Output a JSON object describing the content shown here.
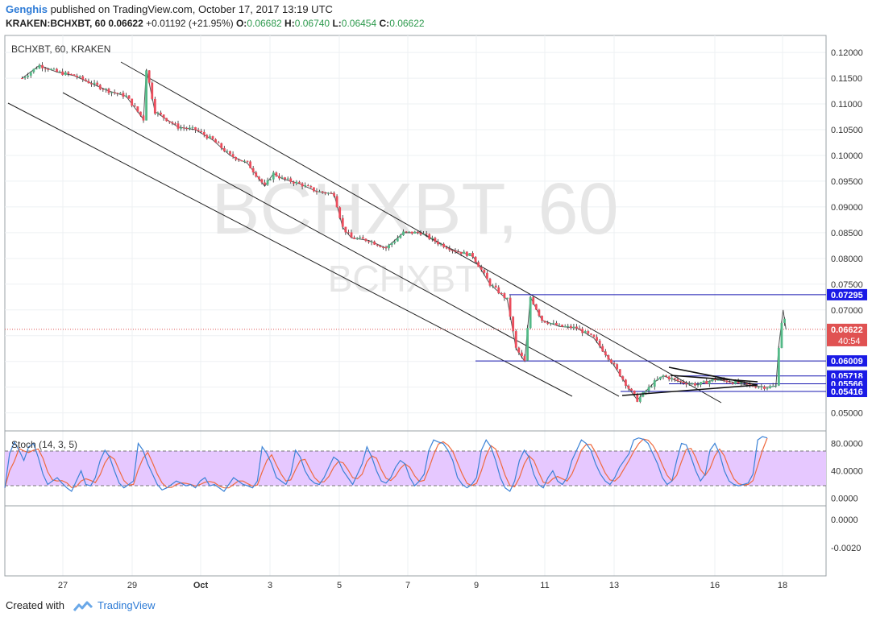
{
  "header": {
    "author": "Genghis",
    "published_text": "published on TradingView.com, October 17, 2017 13:19 UTC",
    "symbol_full": "KRAKEN:BCHXBT, 60",
    "last_price": "0.06622",
    "change": "+0.01192 (+21.95%)",
    "o_label": "O:",
    "o_value": "0.06682",
    "h_label": "H:",
    "h_value": "0.06740",
    "l_label": "L:",
    "l_value": "0.06454",
    "c_label": "C:",
    "c_value": "0.06622"
  },
  "legend_label": "BCHXBT, 60, KRAKEN",
  "watermark": {
    "main": "BCHXBT, 60",
    "sub": "BCHXBT"
  },
  "footer": {
    "created_with": "Created with",
    "brand": "TradingView"
  },
  "colors": {
    "up": "#53b987",
    "down": "#eb4d5c",
    "wick": "#2b2b2b",
    "hline": "#1717b0",
    "label_bg": "#1a1ae6",
    "price_label": "#e05252",
    "stoch_k": "#3b82d6",
    "stoch_d": "#ef6a3f",
    "stoch_band": "#e6c8ff",
    "grid": "#eef0f3"
  },
  "chart_data": [
    {
      "type": "candlestick",
      "title": "BCHXBT, 60, KRAKEN",
      "x_ticks": [
        "27",
        "29",
        "Oct",
        "3",
        "5",
        "7",
        "9",
        "11",
        "13",
        "16",
        "18"
      ],
      "y_ticks": [
        "0.12000",
        "0.11500",
        "0.11000",
        "0.10500",
        "0.10000",
        "0.09500",
        "0.09000",
        "0.08500",
        "0.08000",
        "0.07500",
        "0.07000",
        "0.06500",
        "0.06000",
        "0.05500",
        "0.05000"
      ],
      "ylim": [
        0.0465,
        0.1233
      ],
      "price_path": [
        {
          "x": "Sep 25 12:00",
          "y": 0.115
        },
        {
          "x": "Sep 26 00:00",
          "y": 0.1175
        },
        {
          "x": "Sep 26 12:00",
          "y": 0.1162
        },
        {
          "x": "Sep 27 00:00",
          "y": 0.1155
        },
        {
          "x": "Sep 27 12:00",
          "y": 0.114
        },
        {
          "x": "Sep 28 00:00",
          "y": 0.1125
        },
        {
          "x": "Sep 28 12:00",
          "y": 0.1115
        },
        {
          "x": "Sep 29 00:00",
          "y": 0.107
        },
        {
          "x": "Sep 29 02:00",
          "y": 0.1168
        },
        {
          "x": "Sep 29 08:00",
          "y": 0.1085
        },
        {
          "x": "Sep 30 00:00",
          "y": 0.1055
        },
        {
          "x": "Sep 30 12:00",
          "y": 0.105
        },
        {
          "x": "Oct 1 00:00",
          "y": 0.103
        },
        {
          "x": "Oct 1 12:00",
          "y": 0.1
        },
        {
          "x": "Oct 2 00:00",
          "y": 0.0985
        },
        {
          "x": "Oct 2 12:00",
          "y": 0.094
        },
        {
          "x": "Oct 2 18:00",
          "y": 0.0965
        },
        {
          "x": "Oct 3 00:00",
          "y": 0.0955
        },
        {
          "x": "Oct 3 12:00",
          "y": 0.0945
        },
        {
          "x": "Oct 4 00:00",
          "y": 0.093
        },
        {
          "x": "Oct 4 12:00",
          "y": 0.0925
        },
        {
          "x": "Oct 4 18:00",
          "y": 0.086
        },
        {
          "x": "Oct 5 00:00",
          "y": 0.084
        },
        {
          "x": "Oct 5 12:00",
          "y": 0.0835
        },
        {
          "x": "Oct 6 00:00",
          "y": 0.082
        },
        {
          "x": "Oct 6 12:00",
          "y": 0.085
        },
        {
          "x": "Oct 7 00:00",
          "y": 0.085
        },
        {
          "x": "Oct 7 12:00",
          "y": 0.083
        },
        {
          "x": "Oct 8 00:00",
          "y": 0.0815
        },
        {
          "x": "Oct 8 12:00",
          "y": 0.0805
        },
        {
          "x": "Oct 9 00:00",
          "y": 0.075
        },
        {
          "x": "Oct 9 12:00",
          "y": 0.072
        },
        {
          "x": "Oct 9 18:00",
          "y": 0.0625
        },
        {
          "x": "Oct 10 00:00",
          "y": 0.06
        },
        {
          "x": "Oct 10 04:00",
          "y": 0.0725
        },
        {
          "x": "Oct 10 12:00",
          "y": 0.068
        },
        {
          "x": "Oct 11 00:00",
          "y": 0.0668
        },
        {
          "x": "Oct 11 12:00",
          "y": 0.0665
        },
        {
          "x": "Oct 12 00:00",
          "y": 0.0645
        },
        {
          "x": "Oct 12 12:00",
          "y": 0.06
        },
        {
          "x": "Oct 13 00:00",
          "y": 0.0548
        },
        {
          "x": "Oct 13 06:00",
          "y": 0.0525
        },
        {
          "x": "Oct 13 18:00",
          "y": 0.056
        },
        {
          "x": "Oct 14 00:00",
          "y": 0.0572
        },
        {
          "x": "Oct 14 12:00",
          "y": 0.056
        },
        {
          "x": "Oct 15 00:00",
          "y": 0.0555
        },
        {
          "x": "Oct 15 12:00",
          "y": 0.0565
        },
        {
          "x": "Oct 16 00:00",
          "y": 0.056
        },
        {
          "x": "Oct 16 12:00",
          "y": 0.0553
        },
        {
          "x": "Oct 17 00:00",
          "y": 0.055
        },
        {
          "x": "Oct 17 06:00",
          "y": 0.0552
        },
        {
          "x": "Oct 17 08:00",
          "y": 0.063
        },
        {
          "x": "Oct 17 11:00",
          "y": 0.07
        },
        {
          "x": "Oct 17 13:00",
          "y": 0.0662
        }
      ],
      "price_labels": [
        "0.07295",
        "0.06009",
        "0.05718",
        "0.05566",
        "0.05416"
      ],
      "current_price": {
        "value": "0.06622",
        "countdown": "40:54"
      },
      "horizontal_levels": [
        0.07295,
        0.06009,
        0.05718,
        0.05566,
        0.05416
      ],
      "legend": "top-left",
      "grid": true
    },
    {
      "type": "line",
      "title": "Stoch (14, 3, 5)",
      "y_ticks": [
        "80.0000",
        "40.0000",
        "0.0000"
      ],
      "ylim": [
        -10,
        97
      ],
      "bands": [
        20,
        80
      ],
      "series": [
        {
          "name": "%K",
          "color": "#3b82d6"
        },
        {
          "name": "%D",
          "color": "#ef6a3f"
        }
      ],
      "k_values": [
        15,
        65,
        82,
        70,
        55,
        75,
        80,
        60,
        35,
        20,
        25,
        30,
        22,
        15,
        10,
        25,
        40,
        20,
        18,
        30,
        55,
        70,
        60,
        40,
        22,
        15,
        20,
        25,
        80,
        70,
        50,
        35,
        20,
        12,
        15,
        20,
        25,
        22,
        18,
        20,
        15,
        25,
        30,
        18,
        20,
        15,
        10,
        20,
        30,
        25,
        20,
        18,
        15,
        25,
        75,
        65,
        50,
        30,
        25,
        20,
        35,
        70,
        60,
        40,
        28,
        22,
        20,
        30,
        45,
        60,
        55,
        40,
        30,
        20,
        35,
        50,
        75,
        60,
        40,
        25,
        22,
        30,
        45,
        55,
        50,
        30,
        18,
        25,
        35,
        70,
        85,
        82,
        80,
        70,
        55,
        30,
        20,
        15,
        20,
        30,
        70,
        85,
        75,
        55,
        30,
        15,
        10,
        25,
        55,
        70,
        60,
        35,
        20,
        15,
        30,
        40,
        25,
        20,
        30,
        55,
        70,
        85,
        80,
        70,
        50,
        35,
        25,
        20,
        30,
        45,
        55,
        65,
        85,
        88,
        86,
        80,
        65,
        50,
        30,
        20,
        25,
        55,
        80,
        78,
        60,
        40,
        25,
        35,
        70,
        80,
        65,
        40,
        25,
        20,
        18,
        20,
        22,
        35,
        85,
        90,
        88
      ]
    }
  ],
  "time_axis": [
    "27",
    "29",
    "Oct",
    "3",
    "5",
    "7",
    "9",
    "11",
    "13",
    "16",
    "18"
  ]
}
